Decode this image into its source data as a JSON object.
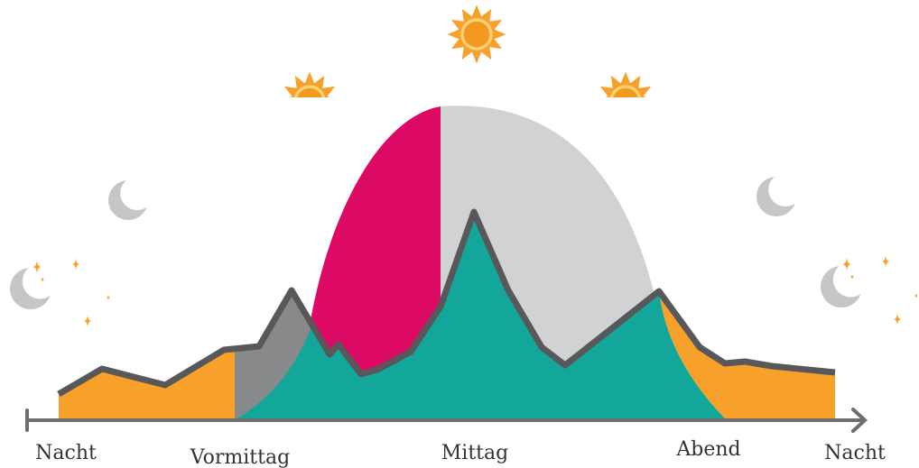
{
  "labels": [
    "Nacht",
    "Vormittag",
    "Mittag",
    "Abend",
    "Nacht"
  ]
}
